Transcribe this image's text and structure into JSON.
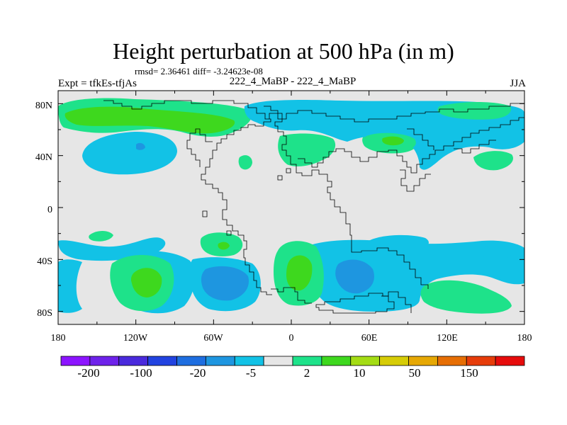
{
  "title": "Height perturbation at 500 hPa (in m)",
  "stats": "rmsd= 2.36461 diff= -3.24623e-08",
  "left_label": "Expt = tfkEs-tfjAs",
  "center_label": "222_4_MaBP - 222_4_MaBP",
  "right_label": "JJA",
  "y_ticks": [
    "80N",
    "40N",
    "0",
    "40S",
    "80S"
  ],
  "x_ticks": [
    "180",
    "120W",
    "60W",
    "0",
    "60E",
    "120E",
    "180"
  ],
  "colorbar": {
    "colors": [
      "#8c14ff",
      "#6e22ea",
      "#4a2adc",
      "#2243e0",
      "#1e6ee0",
      "#1e96e0",
      "#12c2e6",
      "#e6e6e6",
      "#1ee28a",
      "#3ed81e",
      "#a4dc14",
      "#d6cc06",
      "#e6a804",
      "#e66e04",
      "#e63c0a",
      "#e60c0c"
    ],
    "labels": [
      "-200",
      "-100",
      "-20",
      "-5",
      "2",
      "10",
      "50",
      "150"
    ]
  },
  "field_colors": {
    "background": "#e6e6e6",
    "light_blue": "#12c2e6",
    "mid_blue": "#1e96e0",
    "light_green": "#1ee28a",
    "green": "#3ed81e"
  }
}
